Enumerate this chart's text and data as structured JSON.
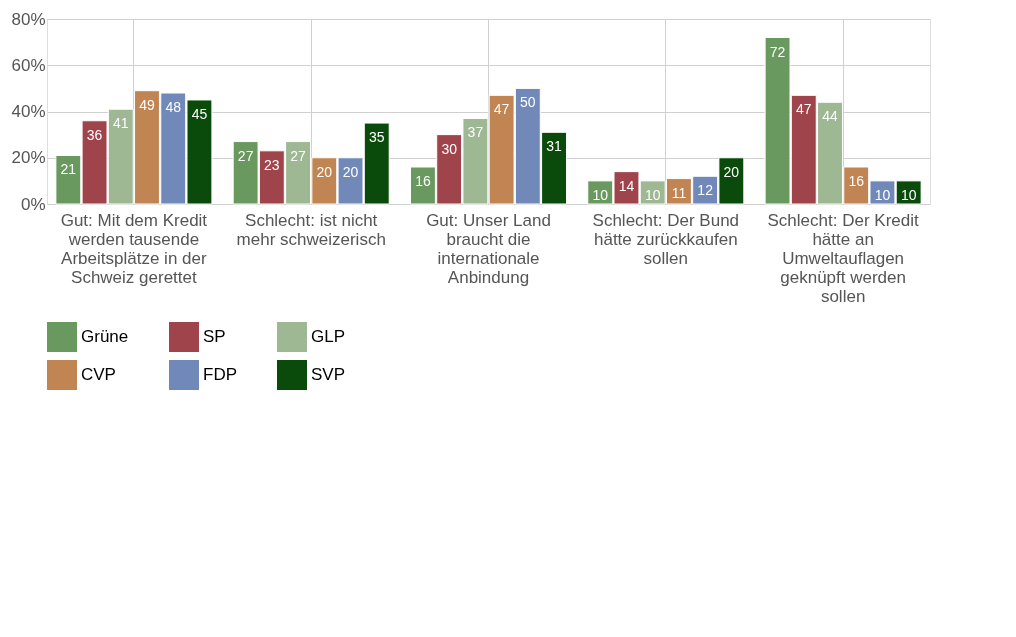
{
  "chart_data": {
    "type": "bar",
    "categories": [
      "Gut: Mit dem Kredit werden tausende Arbeitsplätze in der Schweiz gerettet",
      "Schlecht: ist nicht mehr schweizerisch",
      "Gut: Unser Land braucht die internationale Anbindung",
      "Schlecht: Der Bund hätte zurückkaufen sollen",
      "Schlecht: Der Kredit hätte an Umweltauflagen geknüpft werden sollen"
    ],
    "series": [
      {
        "name": "Grüne",
        "color": "#6a9960",
        "values": [
          21,
          27,
          16,
          10,
          72
        ]
      },
      {
        "name": "SP",
        "color": "#a0444c",
        "values": [
          36,
          23,
          30,
          14,
          47
        ]
      },
      {
        "name": "GLP",
        "color": "#9db893",
        "values": [
          41,
          27,
          37,
          10,
          44
        ]
      },
      {
        "name": "CVP",
        "color": "#c08552",
        "values": [
          49,
          20,
          47,
          11,
          16
        ]
      },
      {
        "name": "FDP",
        "color": "#7189b8",
        "values": [
          48,
          20,
          50,
          12,
          10
        ]
      },
      {
        "name": "SVP",
        "color": "#0a4a0a",
        "values": [
          45,
          35,
          31,
          20,
          10
        ]
      }
    ],
    "ylim": [
      0,
      80
    ],
    "yticks": [
      {
        "value": 0,
        "label": "0%"
      },
      {
        "value": 20,
        "label": "20%"
      },
      {
        "value": 40,
        "label": "40%"
      },
      {
        "value": 60,
        "label": "60%"
      },
      {
        "value": 80,
        "label": "80%"
      }
    ],
    "grid": true,
    "legend": "bottom",
    "data_labels": true
  }
}
